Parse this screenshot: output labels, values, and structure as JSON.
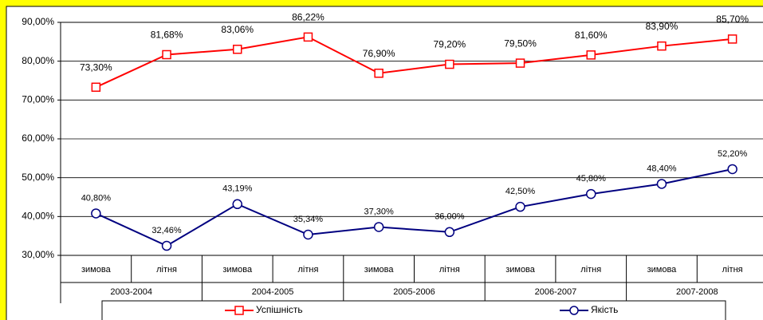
{
  "chart_data": {
    "type": "line",
    "categories": [
      "зимова",
      "літня",
      "зимова",
      "літня",
      "зимова",
      "літня",
      "зимова",
      "літня",
      "зимова",
      "літня"
    ],
    "groups": [
      "2003-2004",
      "2004-2005",
      "2005-2006",
      "2006-2007",
      "2007-2008"
    ],
    "series": [
      {
        "name": "Успішність",
        "color": "#ff0000",
        "marker": "square",
        "values": [
          73.3,
          81.68,
          83.06,
          86.22,
          76.9,
          79.2,
          79.5,
          81.6,
          83.9,
          85.7
        ],
        "value_labels": [
          "73,30%",
          "81,68%",
          "83,06%",
          "86,22%",
          "76,90%",
          "79,20%",
          "79,50%",
          "81,60%",
          "83,90%",
          "85,70%"
        ]
      },
      {
        "name": "Якість",
        "color": "#000080",
        "marker": "circle",
        "values": [
          40.8,
          32.46,
          43.19,
          35.34,
          37.3,
          36.0,
          42.5,
          45.8,
          48.4,
          52.2
        ],
        "value_labels": [
          "40,80%",
          "32,46%",
          "43,19%",
          "35,34%",
          "37,30%",
          "36,00%",
          "42,50%",
          "45,80%",
          "48,40%",
          "52,20%"
        ]
      }
    ],
    "ylim": [
      30,
      90
    ],
    "yticks": [
      {
        "value": 30,
        "label": "30,00%"
      },
      {
        "value": 40,
        "label": "40,00%"
      },
      {
        "value": 50,
        "label": "50,00%"
      },
      {
        "value": 60,
        "label": "60,00%"
      },
      {
        "value": 70,
        "label": "70,00%"
      },
      {
        "value": 80,
        "label": "80,00%"
      },
      {
        "value": 90,
        "label": "90,00%"
      }
    ],
    "grid": true,
    "legend": "bottom"
  }
}
